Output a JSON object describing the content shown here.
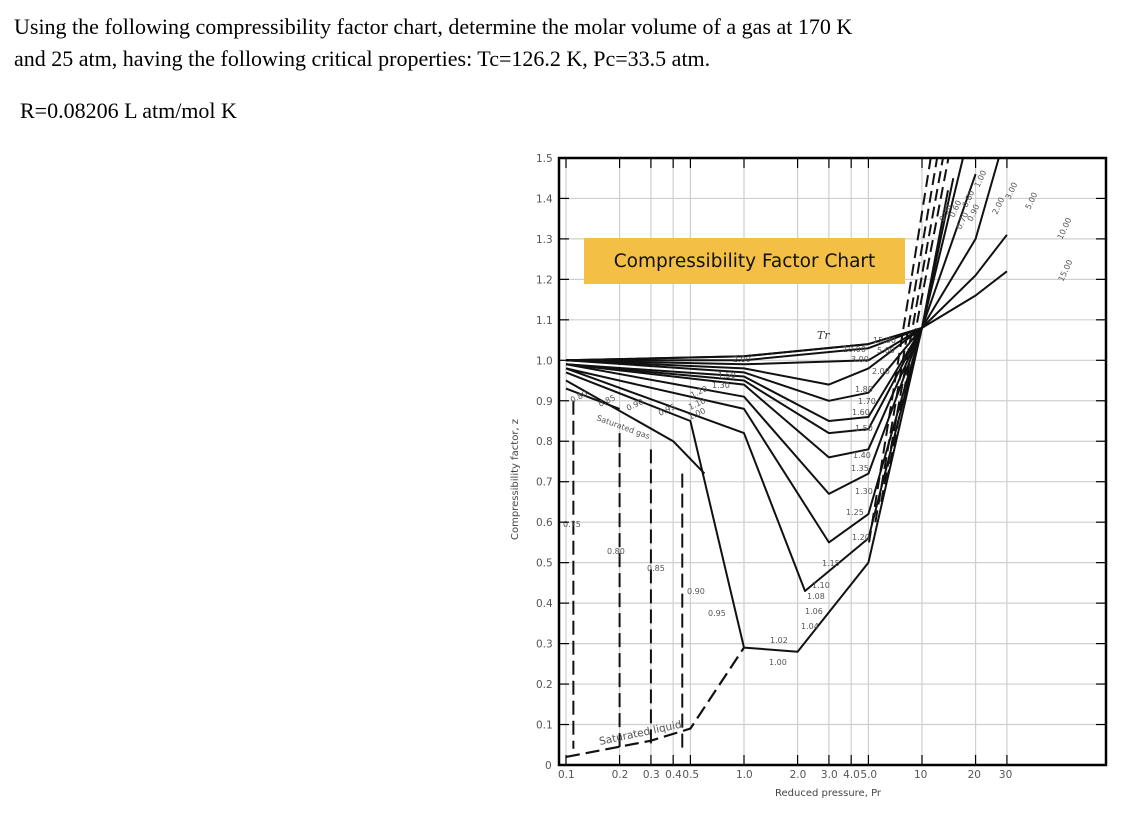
{
  "question": {
    "line1": "Using the following compressibility factor chart, determine the molar volume of a gas at 170 K",
    "line2": "and 25 atm, having the following critical properties: Tc=126.2 K, Pc=33.5 atm.",
    "gas_constant": "R=0.08206 L atm/mol K"
  },
  "banner": {
    "title": "Compressibility Factor Chart",
    "color": "#f4bf45"
  },
  "chart_data": {
    "type": "line",
    "title": "Compressibility Factor Chart",
    "xlabel": "Reduced pressure, Pr",
    "ylabel": "Compressibility factor, z",
    "xscale": "log",
    "xlim": [
      0.1,
      40
    ],
    "ylim": [
      0,
      1.5
    ],
    "grid": true,
    "x_ticks": [
      "0.1",
      "0.2",
      "0.3",
      "0.4",
      "0.5",
      "1.0",
      "2.0",
      "3.0",
      "4.0",
      "5.0",
      "10",
      "20",
      "30"
    ],
    "x_tick_values": [
      0.1,
      0.2,
      0.3,
      0.4,
      0.5,
      1.0,
      2.0,
      3.0,
      4.0,
      5.0,
      10,
      20,
      30
    ],
    "y_ticks": [
      "0",
      "0.1",
      "0.2",
      "0.3",
      "0.4",
      "0.5",
      "0.6",
      "0.7",
      "0.8",
      "0.9",
      "1.0",
      "1.1",
      "1.2",
      "1.3",
      "1.4",
      "1.5"
    ],
    "parameter_label": "Tr",
    "annotations": [
      "Saturated gas",
      "Saturated liquid"
    ],
    "series": [
      {
        "name": "Tr=15.00",
        "x": [
          0.1,
          1,
          5,
          10,
          20,
          30
        ],
        "values": [
          1.0,
          1.01,
          1.04,
          1.08,
          1.16,
          1.22
        ]
      },
      {
        "name": "Tr=10.00",
        "x": [
          0.1,
          1,
          5,
          10,
          20,
          30
        ],
        "values": [
          1.0,
          1.01,
          1.04,
          1.08,
          1.21,
          1.31
        ]
      },
      {
        "name": "Tr=5.00",
        "x": [
          0.1,
          1,
          5,
          10,
          20,
          27
        ],
        "values": [
          1.0,
          1.0,
          1.03,
          1.08,
          1.3,
          1.5
        ]
      },
      {
        "name": "Tr=3.00",
        "x": [
          0.1,
          1,
          5,
          10,
          20
        ],
        "values": [
          1.0,
          0.99,
          1.0,
          1.08,
          1.46
        ]
      },
      {
        "name": "Tr=2.00",
        "x": [
          0.1,
          1,
          3,
          5,
          10,
          17
        ],
        "values": [
          1.0,
          0.98,
          0.94,
          0.98,
          1.08,
          1.5
        ]
      },
      {
        "name": "Tr=1.80",
        "x": [
          0.1,
          1,
          3,
          5,
          10,
          15
        ],
        "values": [
          1.0,
          0.97,
          0.9,
          0.92,
          1.08,
          1.45
        ]
      },
      {
        "name": "Tr=1.60",
        "x": [
          0.1,
          1,
          3,
          5,
          10,
          14
        ],
        "values": [
          0.99,
          0.96,
          0.85,
          0.86,
          1.08,
          1.42
        ]
      },
      {
        "name": "Tr=1.50",
        "x": [
          0.1,
          1,
          3,
          5,
          10
        ],
        "values": [
          0.99,
          0.95,
          0.82,
          0.83,
          1.08
        ]
      },
      {
        "name": "Tr=1.40",
        "x": [
          0.1,
          1,
          3,
          5,
          10
        ],
        "values": [
          0.99,
          0.94,
          0.76,
          0.78,
          1.08
        ]
      },
      {
        "name": "Tr=1.30",
        "x": [
          0.1,
          1,
          3,
          5,
          10
        ],
        "values": [
          0.99,
          0.91,
          0.67,
          0.72,
          1.08
        ]
      },
      {
        "name": "Tr=1.20",
        "x": [
          0.1,
          1,
          3,
          5,
          10
        ],
        "values": [
          0.98,
          0.88,
          0.55,
          0.62,
          1.08
        ]
      },
      {
        "name": "Tr=1.10",
        "x": [
          0.1,
          1,
          2.2,
          5,
          10
        ],
        "values": [
          0.98,
          0.82,
          0.43,
          0.56,
          1.08
        ]
      },
      {
        "name": "Tr=1.00",
        "x": [
          0.1,
          0.5,
          1.0,
          2,
          5,
          10
        ],
        "values": [
          0.97,
          0.85,
          0.29,
          0.28,
          0.5,
          1.08
        ]
      },
      {
        "name": "Tr=0.90",
        "x": [
          0.1,
          0.4,
          0.6
        ],
        "values": [
          0.95,
          0.8,
          0.72
        ]
      },
      {
        "name": "Tr=0.80",
        "x": [
          0.1,
          0.2
        ],
        "values": [
          0.93,
          0.88
        ]
      },
      {
        "name": "Tr=0.70",
        "x": [
          0.1
        ],
        "values": [
          0.91
        ]
      }
    ],
    "saturated_liquid_curve": {
      "x": [
        0.1,
        0.3,
        0.5,
        1.0
      ],
      "values": [
        0.02,
        0.06,
        0.09,
        0.29
      ]
    },
    "curve_labels_upper": [
      "15.00",
      "10.00",
      "5.00",
      "3.00",
      "2.00",
      "1.80",
      "1.70",
      "1.60",
      "1.50",
      "1.40",
      "1.35",
      "1.30",
      "1.25",
      "1.20",
      "1.15",
      "1.10",
      "1.08",
      "1.06",
      "1.04",
      "1.02",
      "1.00"
    ],
    "curve_labels_gas_region": [
      "2.00",
      "1.50",
      "1.30",
      "1.20",
      "1.10",
      "1.00",
      "0.95",
      "0.90",
      "0.85",
      "0.80"
    ],
    "curve_labels_liquid_region": [
      "0.75",
      "0.80",
      "0.85",
      "0.90",
      "0.95",
      "0.90",
      "0.90",
      "0.80"
    ],
    "curve_labels_top_right": [
      "0.50",
      "0.60",
      "0.70",
      "0.80",
      "0.90",
      "1.00",
      "2.00",
      "3.00",
      "5.00",
      "10.00",
      "15.00"
    ]
  }
}
